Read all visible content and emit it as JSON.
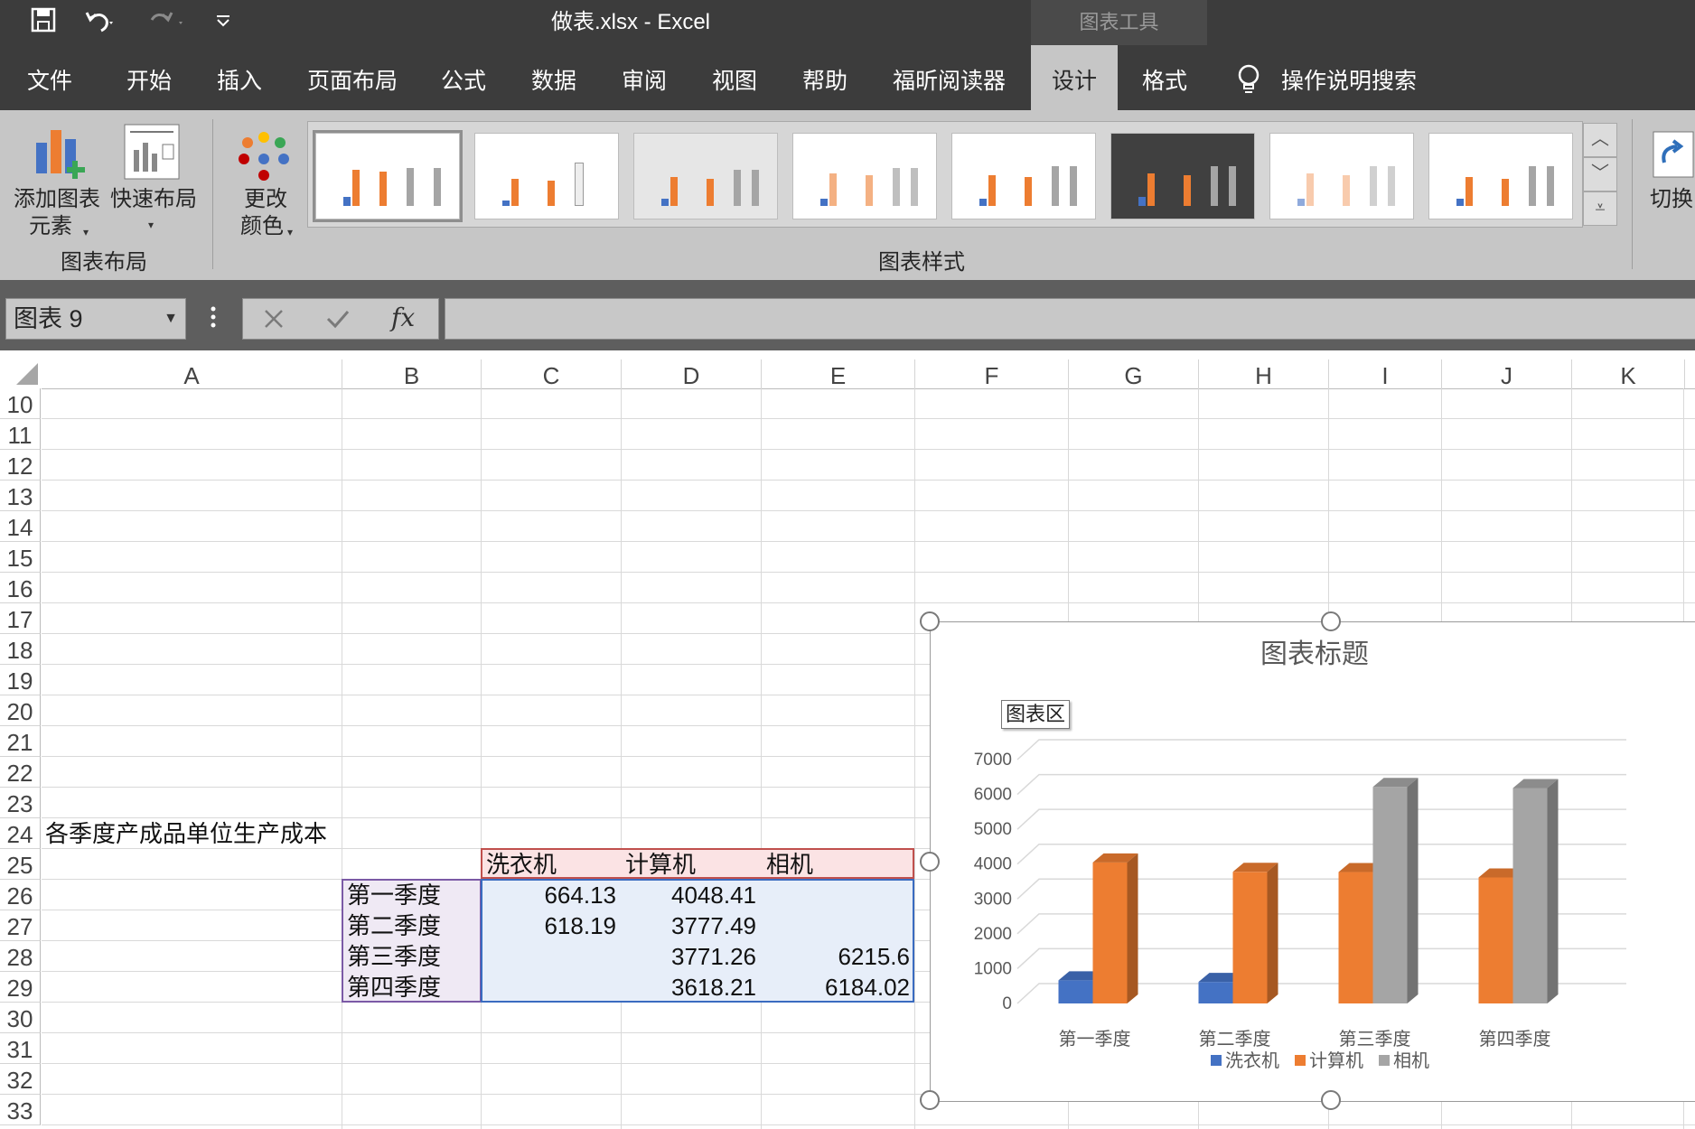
{
  "titlebar": {
    "document_title": "做表.xlsx  -  Excel",
    "contextual_tab": "图表工具"
  },
  "menu": [
    "文件",
    "开始",
    "插入",
    "页面布局",
    "公式",
    "数据",
    "审阅",
    "视图",
    "帮助",
    "福昕阅读器",
    "设计",
    "格式",
    "操作说明搜索"
  ],
  "active_menu": "设计",
  "ribbon": {
    "add_element": [
      "添加图表",
      "元素"
    ],
    "quick_layout": "快速布局",
    "change_colors": [
      "更改",
      "颜色"
    ],
    "group_layout": "图表布局",
    "group_styles": "图表样式",
    "switch": "切换"
  },
  "formula_bar": {
    "name_box": "图表 9",
    "fx": "fx",
    "formula": ""
  },
  "columns": [
    "A",
    "B",
    "C",
    "D",
    "E",
    "F",
    "G",
    "H",
    "I",
    "J",
    "K"
  ],
  "rows": [
    "10",
    "11",
    "12",
    "13",
    "14",
    "15",
    "16",
    "17",
    "18",
    "19",
    "20",
    "21",
    "22",
    "23",
    "24",
    "25",
    "26",
    "27",
    "28",
    "29",
    "30",
    "31",
    "32",
    "33"
  ],
  "sheet": {
    "title": "各季度产成品单位生产成本",
    "headers": [
      "洗衣机",
      "计算机",
      "相机"
    ],
    "row_labels": [
      "第一季度",
      "第二季度",
      "第三季度",
      "第四季度"
    ],
    "values": [
      [
        "664.13",
        "4048.41",
        ""
      ],
      [
        "618.19",
        "3777.49",
        ""
      ],
      [
        "",
        "3771.26",
        "6215.6"
      ],
      [
        "",
        "3618.21",
        "6184.02"
      ]
    ]
  },
  "chart_area_tooltip": "图表区",
  "colors": {
    "series1": "#4472c4",
    "series2": "#ed7d31",
    "series3": "#a5a5a5",
    "active_tab": "#c6c6c6"
  },
  "chart_data": {
    "type": "bar",
    "title": "图表标题",
    "categories": [
      "第一季度",
      "第二季度",
      "第三季度",
      "第四季度"
    ],
    "series": [
      {
        "name": "洗衣机",
        "values": [
          664.13,
          618.19,
          null,
          null
        ]
      },
      {
        "name": "计算机",
        "values": [
          4048.41,
          3777.49,
          3771.26,
          3618.21
        ]
      },
      {
        "name": "相机",
        "values": [
          null,
          null,
          6215.6,
          6184.02
        ]
      }
    ],
    "yticks": [
      "0",
      "1000",
      "2000",
      "3000",
      "4000",
      "5000",
      "6000",
      "7000"
    ],
    "ylim": [
      0,
      7000
    ],
    "legend": "bottom",
    "grid": true,
    "style": "3d-clustered-column"
  }
}
